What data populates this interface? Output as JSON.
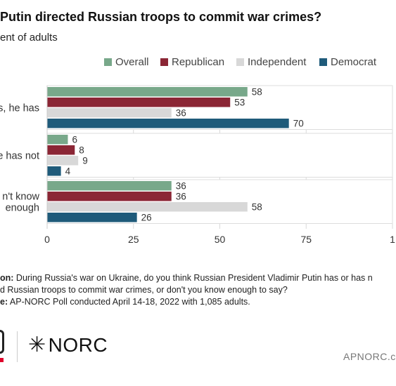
{
  "header": {
    "title": "Putin directed Russian troops to commit war crimes?",
    "subtitle": "ent of adults"
  },
  "colors": {
    "Overall": "#78a88a",
    "Republican": "#8b2635",
    "Independent": "#d8d8d8",
    "Democrat": "#1f5b7a"
  },
  "chart_data": {
    "type": "bar",
    "orientation": "horizontal",
    "categories": [
      "s, he has",
      "e has not",
      "n't know|enough"
    ],
    "series": [
      {
        "name": "Overall",
        "values": [
          58,
          6,
          36
        ]
      },
      {
        "name": "Republican",
        "values": [
          53,
          8,
          36
        ]
      },
      {
        "name": "Independent",
        "values": [
          36,
          9,
          58
        ]
      },
      {
        "name": "Democrat",
        "values": [
          70,
          4,
          26
        ]
      }
    ],
    "xlim": [
      0,
      100
    ],
    "xticks": [
      "0",
      "25",
      "50",
      "75",
      "1"
    ],
    "legend_position": "top",
    "grid": true
  },
  "notes": {
    "question_label": "on:",
    "question_line1": " During Russia's war on Ukraine, do you think Russian President Vladimir Putin has or has n",
    "question_line2": "d Russian troops to commit war crimes, or don't you know enough to say?",
    "source_label": "e:",
    "source_text": " AP-NORC Poll conducted April 14-18, 2022 with 1,085 adults."
  },
  "footer": {
    "norc_logo": "NORC",
    "url": "APNORC.c"
  }
}
